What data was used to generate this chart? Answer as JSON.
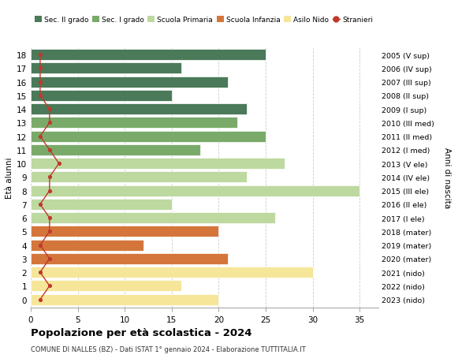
{
  "ages": [
    18,
    17,
    16,
    15,
    14,
    13,
    12,
    11,
    10,
    9,
    8,
    7,
    6,
    5,
    4,
    3,
    2,
    1,
    0
  ],
  "right_labels": [
    "2005 (V sup)",
    "2006 (IV sup)",
    "2007 (III sup)",
    "2008 (II sup)",
    "2009 (I sup)",
    "2010 (III med)",
    "2011 (II med)",
    "2012 (I med)",
    "2013 (V ele)",
    "2014 (IV ele)",
    "2015 (III ele)",
    "2016 (II ele)",
    "2017 (I ele)",
    "2018 (mater)",
    "2019 (mater)",
    "2020 (mater)",
    "2021 (nido)",
    "2022 (nido)",
    "2023 (nido)"
  ],
  "bar_values": [
    25,
    16,
    21,
    15,
    23,
    22,
    25,
    18,
    27,
    23,
    35,
    15,
    26,
    20,
    12,
    21,
    30,
    16,
    20
  ],
  "bar_colors": [
    "#4a7a59",
    "#4a7a59",
    "#4a7a59",
    "#4a7a59",
    "#4a7a59",
    "#7aaa6a",
    "#7aaa6a",
    "#7aaa6a",
    "#bdd9a0",
    "#bdd9a0",
    "#bdd9a0",
    "#bdd9a0",
    "#bdd9a0",
    "#d4763b",
    "#d4763b",
    "#d4763b",
    "#f5e69a",
    "#f5e69a",
    "#f5e69a"
  ],
  "stranieri_values": [
    1,
    1,
    1,
    1,
    2,
    2,
    1,
    2,
    3,
    2,
    2,
    1,
    2,
    2,
    1,
    2,
    1,
    2,
    1
  ],
  "legend_labels": [
    "Sec. II grado",
    "Sec. I grado",
    "Scuola Primaria",
    "Scuola Infanzia",
    "Asilo Nido",
    "Stranieri"
  ],
  "legend_colors": [
    "#4a7a59",
    "#7aaa6a",
    "#bdd9a0",
    "#d4763b",
    "#f5e69a",
    "#c0392b"
  ],
  "ylabel": "Età alunni",
  "right_ylabel": "Anni di nascita",
  "title": "Popolazione per età scolastica - 2024",
  "subtitle": "COMUNE DI NALLES (BZ) - Dati ISTAT 1° gennaio 2024 - Elaborazione TUTTITALIA.IT",
  "xlim": [
    0,
    37
  ],
  "xticks": [
    0,
    5,
    10,
    15,
    20,
    25,
    30,
    35
  ],
  "background_color": "#ffffff",
  "grid_color": "#cccccc",
  "bar_height": 0.82
}
